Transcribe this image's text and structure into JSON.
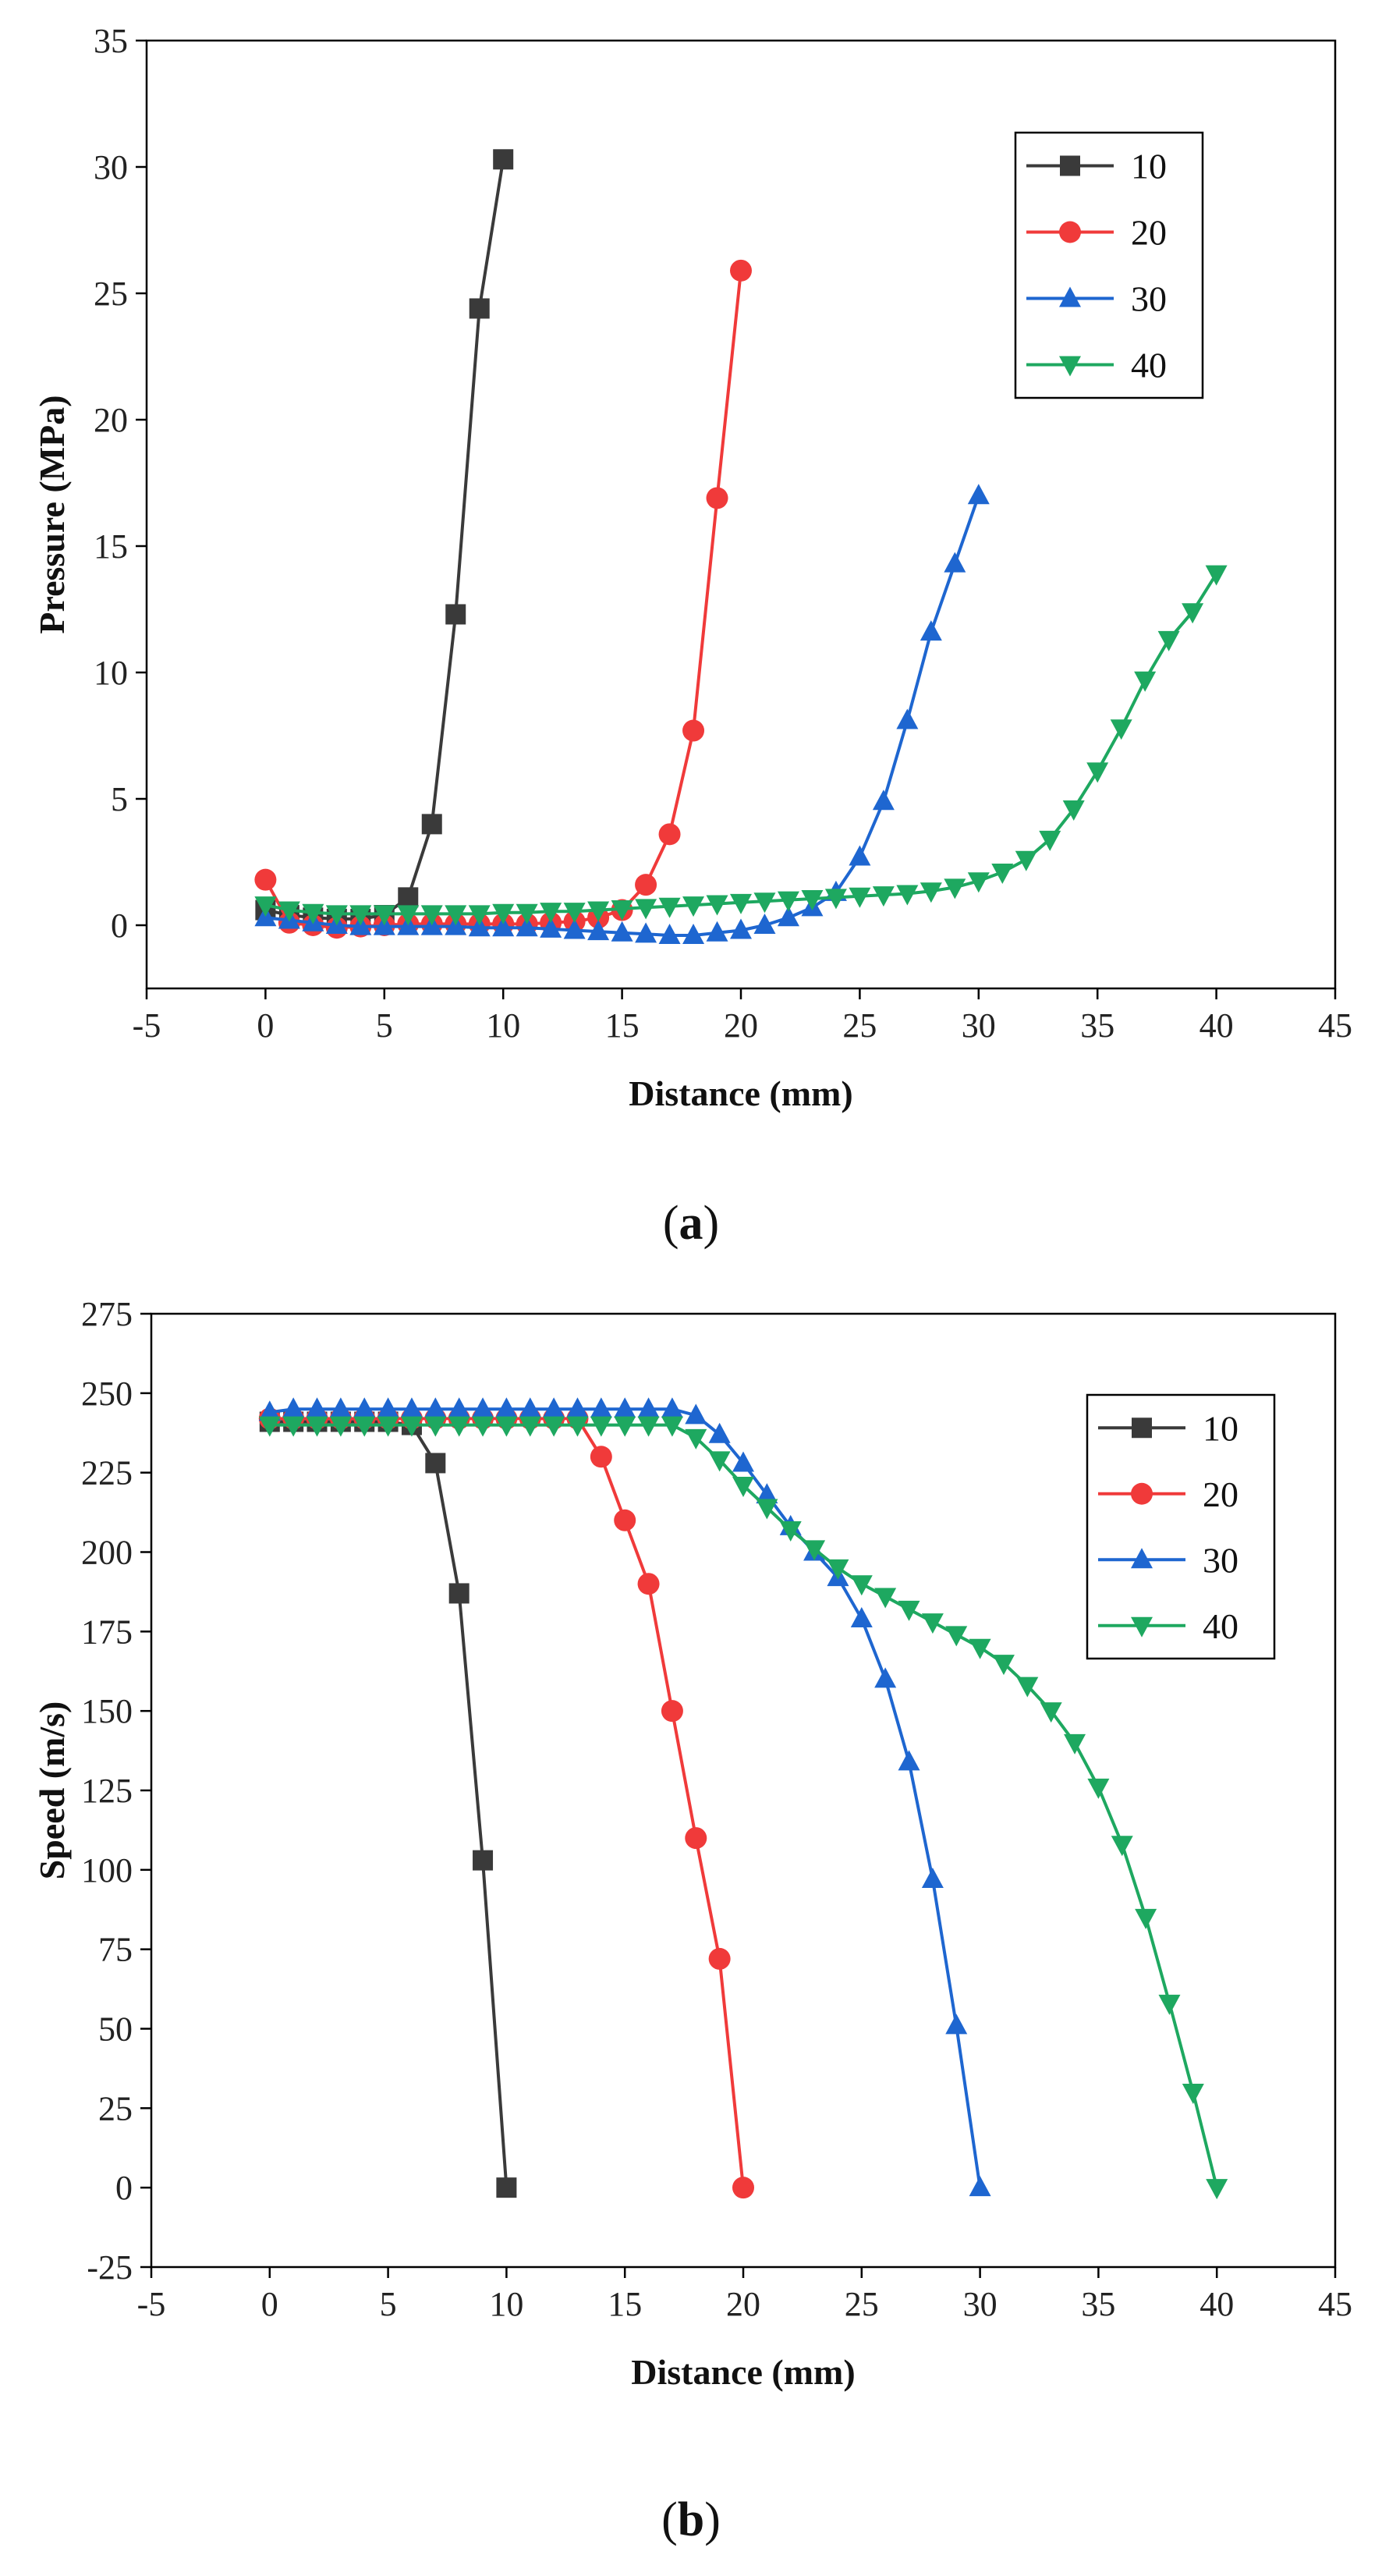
{
  "chart_data": [
    {
      "type": "line",
      "caption": "a",
      "title": "",
      "xlabel": "Distance (mm)",
      "ylabel": "Pressure (MPa)",
      "xlim": [
        -5,
        45
      ],
      "ylim": [
        -2.5,
        35
      ],
      "xticks": [
        -5,
        0,
        5,
        10,
        15,
        20,
        25,
        30,
        35,
        40,
        45
      ],
      "yticks": [
        0,
        5,
        10,
        15,
        20,
        25,
        30,
        35
      ],
      "grid": false,
      "legend_position": "top-right",
      "series": [
        {
          "name": "10",
          "color": "#3a3a3a",
          "marker": "square",
          "points": [
            [
              0,
              0.6
            ],
            [
              1,
              0.4
            ],
            [
              2,
              0.3
            ],
            [
              3,
              0.25
            ],
            [
              4,
              0.25
            ],
            [
              5,
              0.4
            ],
            [
              6,
              1.1
            ],
            [
              7,
              4.0
            ],
            [
              8,
              12.3
            ],
            [
              9,
              24.4
            ],
            [
              10,
              30.3
            ]
          ]
        },
        {
          "name": "20",
          "color": "#f03a3a",
          "marker": "circle",
          "points": [
            [
              0,
              1.8
            ],
            [
              1,
              0.1
            ],
            [
              2,
              0.0
            ],
            [
              3,
              -0.1
            ],
            [
              4,
              -0.05
            ],
            [
              5,
              0.0
            ],
            [
              6,
              0.05
            ],
            [
              7,
              0.05
            ],
            [
              8,
              0.05
            ],
            [
              9,
              0.05
            ],
            [
              10,
              0.05
            ],
            [
              11,
              0.05
            ],
            [
              12,
              0.1
            ],
            [
              13,
              0.15
            ],
            [
              14,
              0.3
            ],
            [
              15,
              0.6
            ],
            [
              16,
              1.6
            ],
            [
              17,
              3.6
            ],
            [
              18,
              7.7
            ],
            [
              19,
              16.9
            ],
            [
              20,
              25.9
            ]
          ]
        },
        {
          "name": "30",
          "color": "#1e66d0",
          "marker": "triangle-up",
          "points": [
            [
              0,
              0.3
            ],
            [
              1,
              0.2
            ],
            [
              2,
              0.1
            ],
            [
              3,
              0.0
            ],
            [
              4,
              -0.05
            ],
            [
              5,
              -0.05
            ],
            [
              6,
              -0.05
            ],
            [
              7,
              -0.05
            ],
            [
              8,
              -0.05
            ],
            [
              9,
              -0.1
            ],
            [
              10,
              -0.1
            ],
            [
              11,
              -0.1
            ],
            [
              12,
              -0.15
            ],
            [
              13,
              -0.2
            ],
            [
              14,
              -0.25
            ],
            [
              15,
              -0.3
            ],
            [
              16,
              -0.35
            ],
            [
              17,
              -0.4
            ],
            [
              18,
              -0.4
            ],
            [
              19,
              -0.3
            ],
            [
              20,
              -0.2
            ],
            [
              21,
              0.0
            ],
            [
              22,
              0.3
            ],
            [
              23,
              0.7
            ],
            [
              24,
              1.3
            ],
            [
              25,
              2.7
            ],
            [
              26,
              4.9
            ],
            [
              27,
              8.1
            ],
            [
              28,
              11.6
            ],
            [
              29,
              14.3
            ],
            [
              30,
              17.0
            ]
          ]
        },
        {
          "name": "40",
          "color": "#1ea860",
          "marker": "triangle-down",
          "points": [
            [
              0,
              0.8
            ],
            [
              1,
              0.6
            ],
            [
              2,
              0.5
            ],
            [
              3,
              0.45
            ],
            [
              4,
              0.45
            ],
            [
              5,
              0.45
            ],
            [
              6,
              0.45
            ],
            [
              7,
              0.45
            ],
            [
              8,
              0.45
            ],
            [
              9,
              0.45
            ],
            [
              10,
              0.5
            ],
            [
              11,
              0.5
            ],
            [
              12,
              0.55
            ],
            [
              13,
              0.55
            ],
            [
              14,
              0.6
            ],
            [
              15,
              0.65
            ],
            [
              16,
              0.7
            ],
            [
              17,
              0.75
            ],
            [
              18,
              0.8
            ],
            [
              19,
              0.85
            ],
            [
              20,
              0.9
            ],
            [
              21,
              0.95
            ],
            [
              22,
              1.0
            ],
            [
              23,
              1.05
            ],
            [
              24,
              1.1
            ],
            [
              25,
              1.15
            ],
            [
              26,
              1.2
            ],
            [
              27,
              1.25
            ],
            [
              28,
              1.35
            ],
            [
              29,
              1.5
            ],
            [
              30,
              1.75
            ],
            [
              31,
              2.1
            ],
            [
              32,
              2.6
            ],
            [
              33,
              3.4
            ],
            [
              34,
              4.6
            ],
            [
              35,
              6.1
            ],
            [
              36,
              7.8
            ],
            [
              37,
              9.7
            ],
            [
              38,
              11.3
            ],
            [
              39,
              12.4
            ],
            [
              40,
              13.9
            ]
          ]
        }
      ]
    },
    {
      "type": "line",
      "caption": "b",
      "title": "",
      "xlabel": "Distance (mm)",
      "ylabel": "Speed (m/s)",
      "xlim": [
        -5,
        45
      ],
      "ylim": [
        -25,
        275
      ],
      "xticks": [
        -5,
        0,
        5,
        10,
        15,
        20,
        25,
        30,
        35,
        40,
        45
      ],
      "yticks": [
        -25,
        0,
        25,
        50,
        75,
        100,
        125,
        150,
        175,
        200,
        225,
        250,
        275
      ],
      "grid": false,
      "legend_position": "top-right",
      "series": [
        {
          "name": "10",
          "color": "#3a3a3a",
          "marker": "square",
          "points": [
            [
              0,
              241
            ],
            [
              1,
              241
            ],
            [
              2,
              241
            ],
            [
              3,
              241
            ],
            [
              4,
              241
            ],
            [
              5,
              241
            ],
            [
              6,
              240
            ],
            [
              7,
              228
            ],
            [
              8,
              187
            ],
            [
              9,
              103
            ],
            [
              10,
              0
            ]
          ]
        },
        {
          "name": "20",
          "color": "#f03a3a",
          "marker": "circle",
          "points": [
            [
              0,
              242
            ],
            [
              1,
              242
            ],
            [
              2,
              242
            ],
            [
              3,
              242
            ],
            [
              4,
              242
            ],
            [
              5,
              242
            ],
            [
              6,
              242
            ],
            [
              7,
              242
            ],
            [
              8,
              242
            ],
            [
              9,
              242
            ],
            [
              10,
              242
            ],
            [
              11,
              242
            ],
            [
              12,
              242
            ],
            [
              13,
              242
            ],
            [
              14,
              230
            ],
            [
              15,
              210
            ],
            [
              16,
              190
            ],
            [
              17,
              150
            ],
            [
              18,
              110
            ],
            [
              19,
              72
            ],
            [
              20,
              0
            ]
          ]
        },
        {
          "name": "30",
          "color": "#1e66d0",
          "marker": "triangle-up",
          "points": [
            [
              0,
              244
            ],
            [
              1,
              245
            ],
            [
              2,
              245
            ],
            [
              3,
              245
            ],
            [
              4,
              245
            ],
            [
              5,
              245
            ],
            [
              6,
              245
            ],
            [
              7,
              245
            ],
            [
              8,
              245
            ],
            [
              9,
              245
            ],
            [
              10,
              245
            ],
            [
              11,
              245
            ],
            [
              12,
              245
            ],
            [
              13,
              245
            ],
            [
              14,
              245
            ],
            [
              15,
              245
            ],
            [
              16,
              245
            ],
            [
              17,
              245
            ],
            [
              18,
              243
            ],
            [
              19,
              237
            ],
            [
              20,
              228
            ],
            [
              21,
              218
            ],
            [
              22,
              208
            ],
            [
              23,
              200
            ],
            [
              24,
              192
            ],
            [
              25,
              179
            ],
            [
              26,
              160
            ],
            [
              27,
              134
            ],
            [
              28,
              97
            ],
            [
              29,
              51
            ],
            [
              30,
              0
            ]
          ]
        },
        {
          "name": "40",
          "color": "#1ea860",
          "marker": "triangle-down",
          "points": [
            [
              0,
              240
            ],
            [
              1,
              240
            ],
            [
              2,
              240
            ],
            [
              3,
              240
            ],
            [
              4,
              240
            ],
            [
              5,
              240
            ],
            [
              6,
              240
            ],
            [
              7,
              240
            ],
            [
              8,
              240
            ],
            [
              9,
              240
            ],
            [
              10,
              240
            ],
            [
              11,
              240
            ],
            [
              12,
              240
            ],
            [
              13,
              240
            ],
            [
              14,
              240
            ],
            [
              15,
              240
            ],
            [
              16,
              240
            ],
            [
              17,
              240
            ],
            [
              18,
              236
            ],
            [
              19,
              229
            ],
            [
              20,
              221
            ],
            [
              21,
              214
            ],
            [
              22,
              207
            ],
            [
              23,
              201
            ],
            [
              24,
              195
            ],
            [
              25,
              190
            ],
            [
              26,
              186
            ],
            [
              27,
              182
            ],
            [
              28,
              178
            ],
            [
              29,
              174
            ],
            [
              30,
              170
            ],
            [
              31,
              165
            ],
            [
              32,
              158
            ],
            [
              33,
              150
            ],
            [
              34,
              140
            ],
            [
              35,
              126
            ],
            [
              36,
              108
            ],
            [
              37,
              85
            ],
            [
              38,
              58
            ],
            [
              39,
              30
            ],
            [
              40,
              0
            ]
          ]
        }
      ]
    }
  ]
}
